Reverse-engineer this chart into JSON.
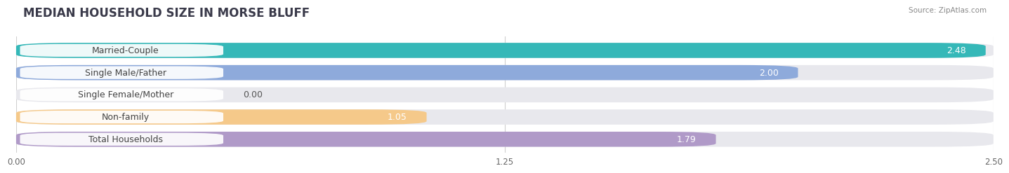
{
  "title": "MEDIAN HOUSEHOLD SIZE IN MORSE BLUFF",
  "source": "Source: ZipAtlas.com",
  "categories": [
    "Married-Couple",
    "Single Male/Father",
    "Single Female/Mother",
    "Non-family",
    "Total Households"
  ],
  "values": [
    2.48,
    2.0,
    0.0,
    1.05,
    1.79
  ],
  "bar_colors": [
    "#35b8b8",
    "#8eaadb",
    "#f28bab",
    "#f5c98a",
    "#b09ac8"
  ],
  "bar_bg_color": "#e8e8ed",
  "xlim": [
    0,
    2.5
  ],
  "xticks": [
    0.0,
    1.25,
    2.5
  ],
  "xtick_labels": [
    "0.00",
    "1.25",
    "2.50"
  ],
  "title_fontsize": 12,
  "label_fontsize": 9,
  "value_fontsize": 9,
  "background_color": "#ffffff",
  "bar_height": 0.68
}
